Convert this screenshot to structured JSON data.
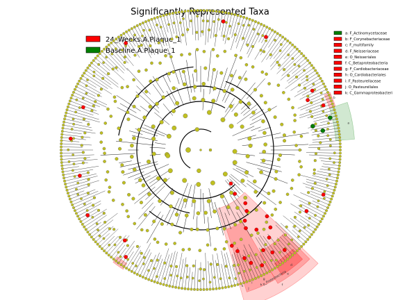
{
  "chart_data": {
    "type": "cladogram",
    "title": "Significantly Represented Taxa",
    "classes": [
      {
        "name": "24_Weeks.A.Plaque_1",
        "color": "#ff0000"
      },
      {
        "name": "Baseline.A.Plaque_1",
        "color": "#008000"
      }
    ],
    "node_color": "#c0c020",
    "taxa": [
      {
        "key": "a",
        "label": "a: F_Actinomycetaceae",
        "class": "Baseline.A.Plaque_1",
        "color": "#008000"
      },
      {
        "key": "b",
        "label": "b: F_Corynebacteriaceae",
        "class": "24_Weeks.A.Plaque_1",
        "color": "#ff0000"
      },
      {
        "key": "c",
        "label": "c: F_multifamily",
        "class": "24_Weeks.A.Plaque_1",
        "color": "#ff0000"
      },
      {
        "key": "d",
        "label": "d: F_Neisseriaceae",
        "class": "24_Weeks.A.Plaque_1",
        "color": "#ff0000"
      },
      {
        "key": "e",
        "label": "e: O_Neisseriales",
        "class": "24_Weeks.A.Plaque_1",
        "color": "#ff0000"
      },
      {
        "key": "f",
        "label": "f: C_Betaproteobacteria",
        "class": "24_Weeks.A.Plaque_1",
        "color": "#ff0000"
      },
      {
        "key": "g",
        "label": "g: F_Cardiobacteriaceae",
        "class": "24_Weeks.A.Plaque_1",
        "color": "#ff0000"
      },
      {
        "key": "h",
        "label": "h: O_Cardiobacteriales",
        "class": "24_Weeks.A.Plaque_1",
        "color": "#ff0000"
      },
      {
        "key": "i",
        "label": "i: F_Pasteurellaceae",
        "class": "24_Weeks.A.Plaque_1",
        "color": "#ff0000"
      },
      {
        "key": "j",
        "label": "j: O_Pasteurellales",
        "class": "24_Weeks.A.Plaque_1",
        "color": "#ff0000"
      },
      {
        "key": "k",
        "label": "k: C_Gammaproteobacteri",
        "class": "24_Weeks.A.Plaque_1",
        "color": "#ff0000"
      }
    ],
    "phylum_label": "p_Proteobacteria"
  }
}
